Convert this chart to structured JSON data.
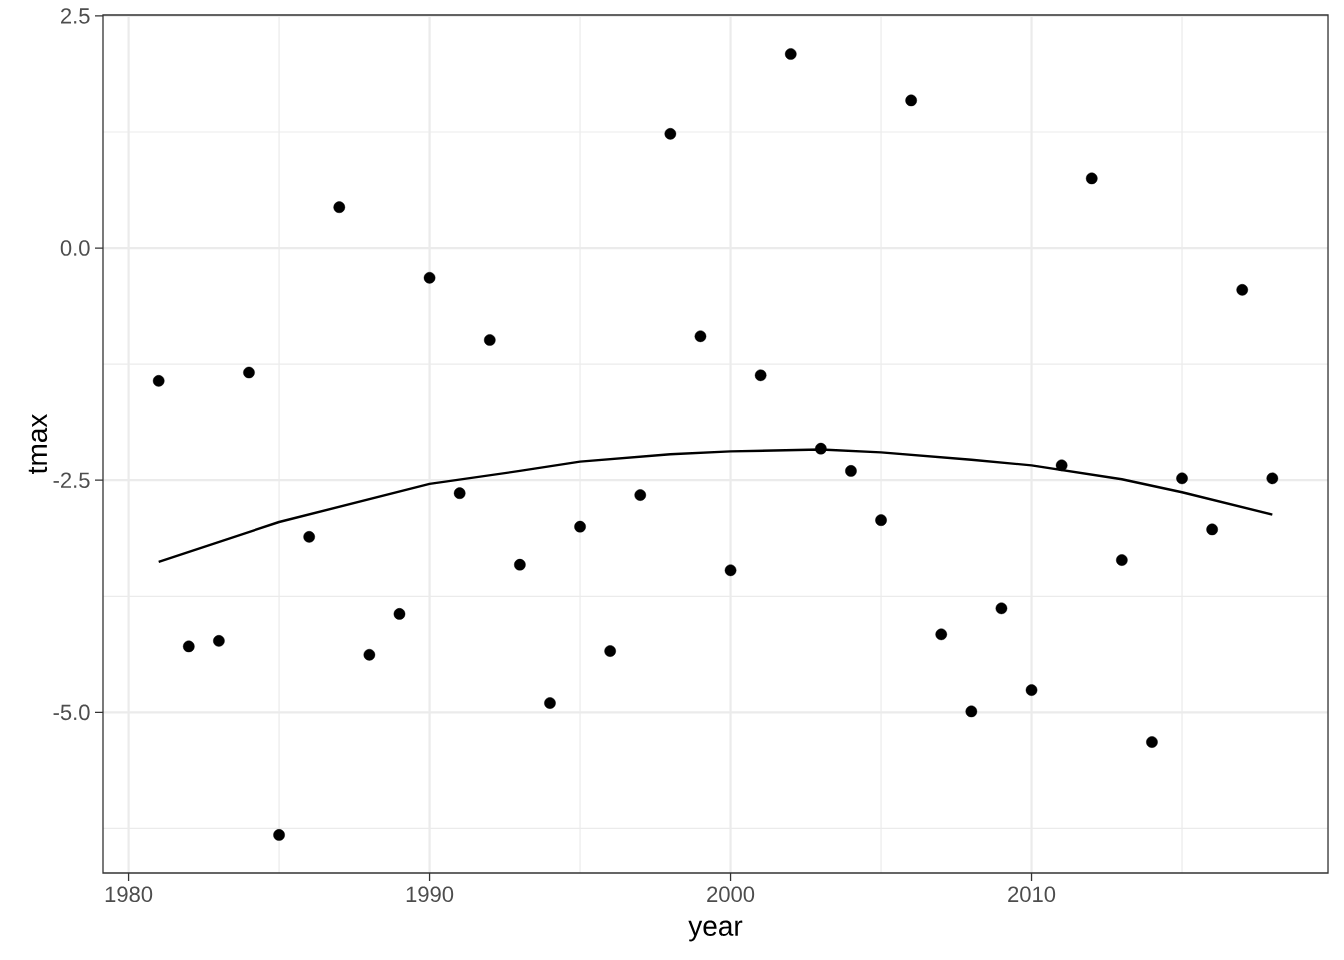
{
  "chart_data": {
    "type": "scatter",
    "xlabel": "year",
    "ylabel": "tmax",
    "x": [
      1981,
      1982,
      1983,
      1984,
      1985,
      1986,
      1987,
      1988,
      1989,
      1990,
      1991,
      1992,
      1993,
      1994,
      1995,
      1996,
      1997,
      1998,
      1999,
      2000,
      2001,
      2002,
      2003,
      2004,
      2005,
      2006,
      2007,
      2008,
      2009,
      2010,
      2011,
      2012,
      2013,
      2014,
      2015,
      2016,
      2017,
      2018
    ],
    "xlim": [
      1979.15,
      2019.85
    ],
    "ylim": [
      -6.73,
      2.51
    ],
    "xticks": [
      1980,
      1990,
      2000,
      2010
    ],
    "yticks": [
      2.5,
      {
        "value": 0,
        "label": "0.0"
      },
      -2.5,
      {
        "value": -5,
        "label": "-5.0"
      }
    ],
    "grid": true,
    "marker": "circle",
    "series": [
      {
        "color": "#000000",
        "values": [
          -1.43,
          -4.29,
          -4.23,
          -1.34,
          -6.32,
          -3.11,
          0.44,
          -4.38,
          -3.94,
          -0.32,
          -2.64,
          -0.99,
          -3.41,
          -4.9,
          -3.0,
          -4.34,
          -2.66,
          1.23,
          -0.95,
          -3.47,
          -1.37,
          2.09,
          -2.16,
          -2.4,
          -2.93,
          1.59,
          -4.16,
          -4.99,
          -3.88,
          -4.76,
          -2.34,
          0.75,
          -3.36,
          -5.32,
          -2.48,
          -3.03,
          -0.45,
          -2.48
        ]
      },
      {
        "type": "line",
        "marker": "none",
        "color": "#000000",
        "x": [
          1981,
          1985,
          1990,
          1993,
          1995,
          1998,
          2000,
          2003,
          2005,
          2008,
          2010,
          2013,
          2015,
          2018
        ],
        "values": [
          -3.38,
          -2.95,
          -2.54,
          -2.4,
          -2.3,
          -2.22,
          -2.19,
          -2.17,
          -2.2,
          -2.28,
          -2.34,
          -2.49,
          -2.63,
          -2.87
        ]
      }
    ]
  }
}
